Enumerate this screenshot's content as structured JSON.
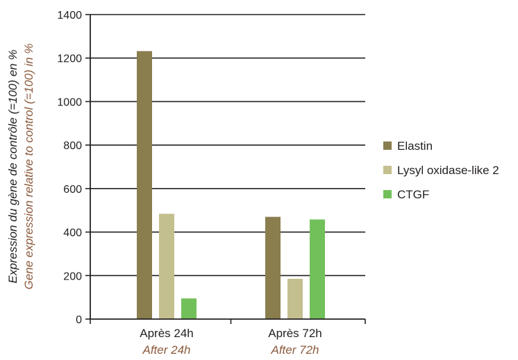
{
  "colors": {
    "elastin": "#8a7d4e",
    "lysyl": "#c4bf8e",
    "ctgf": "#72c05a",
    "english_label": "#8b5a3c",
    "grid": "#231f20",
    "text": "#231f20"
  },
  "chart_data": {
    "type": "bar",
    "ylabel_fr": "Expression du gène de contrôle (=100) en %",
    "ylabel_en": "Gene expression relative to control (=100) in %",
    "ylim": [
      0,
      1400
    ],
    "yticks": [
      0,
      200,
      400,
      600,
      800,
      1000,
      1200,
      1400
    ],
    "grid": true,
    "legend_position": "right",
    "categories": [
      "Après 24h",
      "Après 72h"
    ],
    "categories_en": [
      "After 24h",
      "After 72h"
    ],
    "series": [
      {
        "name": "Elastin",
        "color": "#8a7d4e",
        "values": [
          1232,
          470
        ]
      },
      {
        "name": "Lysyl oxidase-like 2",
        "color": "#c4bf8e",
        "values": [
          484,
          185
        ]
      },
      {
        "name": "CTGF",
        "color": "#72c05a",
        "values": [
          95,
          458
        ]
      }
    ]
  }
}
